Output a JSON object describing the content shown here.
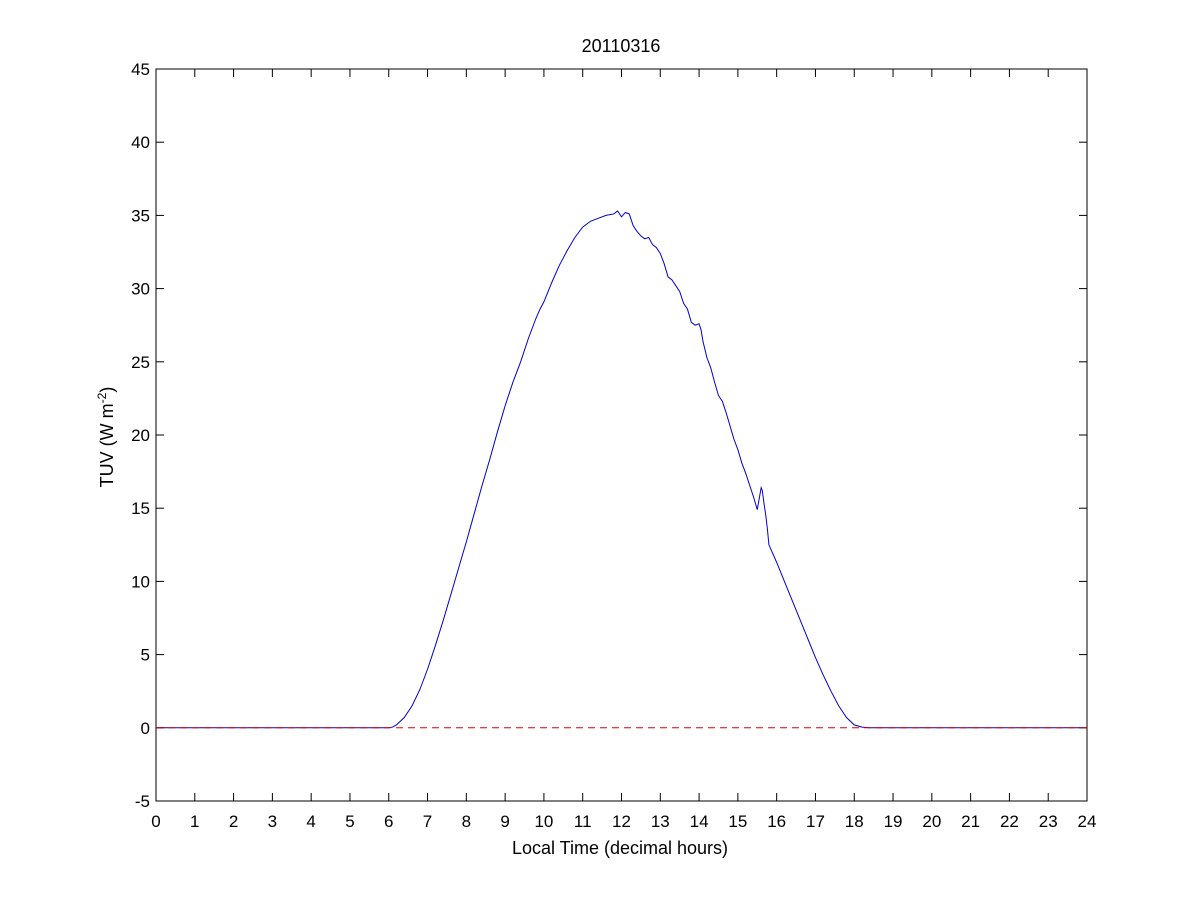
{
  "chart_data": {
    "type": "line",
    "title": "20110316",
    "xlabel": "Local Time (decimal hours)",
    "ylabel_main": "TUV (W m",
    "ylabel_superscript": "-2",
    "ylabel_close": ")",
    "xlim": [
      0,
      24
    ],
    "ylim": [
      -5,
      45
    ],
    "xticks": [
      0,
      1,
      2,
      3,
      4,
      5,
      6,
      7,
      8,
      9,
      10,
      11,
      12,
      13,
      14,
      15,
      16,
      17,
      18,
      19,
      20,
      21,
      22,
      23,
      24
    ],
    "yticks": [
      -5,
      0,
      5,
      10,
      15,
      20,
      25,
      30,
      35,
      40,
      45
    ],
    "grid": false,
    "legend": "none",
    "series": [
      {
        "color": "#0000cc",
        "style": "solid",
        "x": [
          0,
          6.0,
          6.1,
          6.2,
          6.4,
          6.6,
          6.8,
          7.0,
          7.2,
          7.4,
          7.6,
          7.8,
          8.0,
          8.2,
          8.4,
          8.6,
          8.8,
          9.0,
          9.2,
          9.4,
          9.6,
          9.8,
          9.9,
          10.0,
          10.2,
          10.4,
          10.6,
          10.8,
          11.0,
          11.2,
          11.4,
          11.6,
          11.8,
          11.9,
          12.0,
          12.1,
          12.2,
          12.3,
          12.4,
          12.5,
          12.6,
          12.7,
          12.8,
          12.9,
          13.0,
          13.1,
          13.2,
          13.3,
          13.4,
          13.5,
          13.6,
          13.7,
          13.8,
          13.9,
          14.0,
          14.05,
          14.1,
          14.2,
          14.3,
          14.4,
          14.5,
          14.6,
          14.7,
          14.8,
          14.9,
          15.0,
          15.1,
          15.2,
          15.3,
          15.4,
          15.5,
          15.6,
          15.63,
          15.66,
          15.68,
          15.72,
          15.76,
          15.8,
          16.0,
          16.2,
          16.4,
          16.6,
          16.8,
          17.0,
          17.2,
          17.4,
          17.6,
          17.8,
          18.0,
          18.2,
          18.4,
          18.6,
          18.8,
          24
        ],
        "y": [
          0,
          0,
          0.05,
          0.2,
          0.7,
          1.5,
          2.6,
          4.0,
          5.6,
          7.3,
          9.1,
          10.9,
          12.7,
          14.6,
          16.5,
          18.3,
          20.2,
          22.0,
          23.6,
          25.0,
          26.6,
          28.0,
          28.6,
          29.1,
          30.4,
          31.6,
          32.6,
          33.5,
          34.2,
          34.6,
          34.8,
          35.0,
          35.1,
          35.3,
          34.9,
          35.2,
          35.1,
          34.3,
          33.9,
          33.6,
          33.4,
          33.5,
          33.0,
          32.8,
          32.4,
          31.7,
          30.8,
          30.6,
          30.2,
          29.8,
          29.0,
          28.6,
          27.7,
          27.5,
          27.6,
          27.2,
          26.4,
          25.3,
          24.6,
          23.6,
          22.7,
          22.3,
          21.5,
          20.6,
          19.7,
          19.0,
          18.1,
          17.4,
          16.6,
          15.8,
          14.9,
          16.4,
          16.2,
          15.6,
          15.2,
          14.5,
          13.6,
          12.5,
          11.3,
          10.0,
          8.7,
          7.4,
          6.1,
          4.8,
          3.6,
          2.5,
          1.5,
          0.7,
          0.2,
          0.05,
          0,
          0,
          0,
          0
        ]
      },
      {
        "color": "#dd0000",
        "style": "dashed",
        "x": [
          0,
          24
        ],
        "y": [
          0,
          0
        ]
      }
    ]
  }
}
